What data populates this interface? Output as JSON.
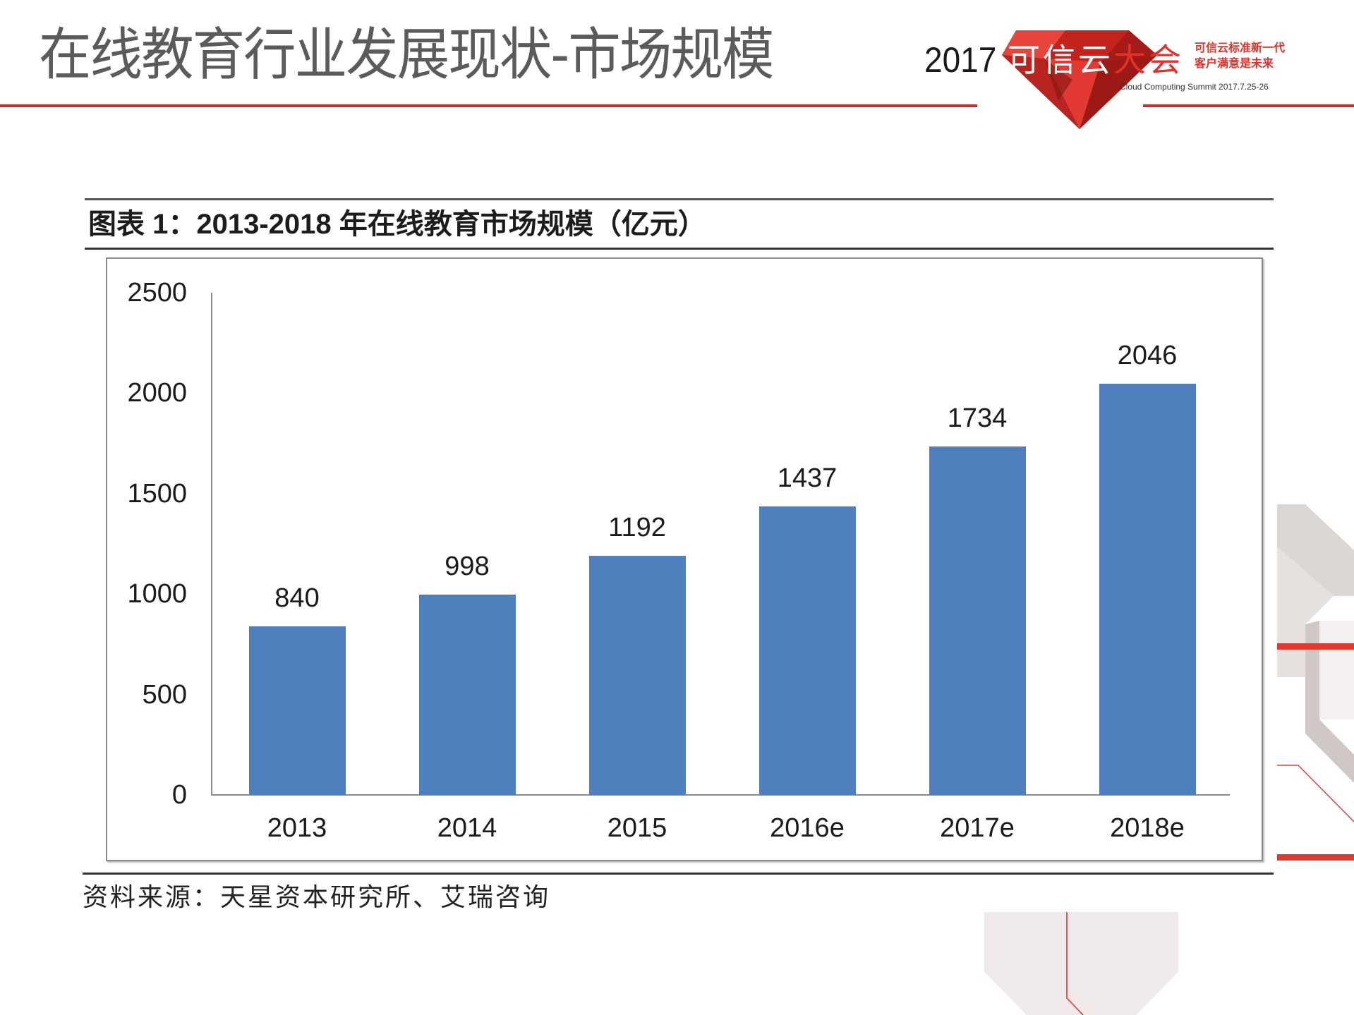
{
  "slide": {
    "title": "在线教育行业发展现状-市场规模"
  },
  "logo": {
    "year": "2017",
    "name_white": "可信云",
    "name_red": "大会",
    "tagline_line1": "可信云标准新一代",
    "tagline_line2": "客户满意是未来",
    "subtitle": "Cloud Computing Summit 2017.7.25-26",
    "accent_color": "#e0322b"
  },
  "figure": {
    "caption": "图表 1：2013-2018 年在线教育市场规模（亿元）",
    "source": "资料来源：天星资本研究所、艾瑞咨询"
  },
  "chart_data": {
    "type": "bar",
    "title": "图表 1：2013-2018 年在线教育市场规模（亿元）",
    "xlabel": "",
    "ylabel": "亿元",
    "categories": [
      "2013",
      "2014",
      "2015",
      "2016e",
      "2017e",
      "2018e"
    ],
    "values": [
      840,
      998,
      1192,
      1437,
      1734,
      2046
    ],
    "data_labels": [
      "840",
      "998",
      "1192",
      "1437",
      "1734",
      "2046"
    ],
    "ylim": [
      0,
      2500
    ],
    "yticks": [
      "0",
      "500",
      "1000",
      "1500",
      "2000",
      "2500"
    ],
    "grid": false,
    "legend": null,
    "bar_color": "#4f7fbc",
    "source": "资料来源：天星资本研究所、艾瑞咨询"
  }
}
